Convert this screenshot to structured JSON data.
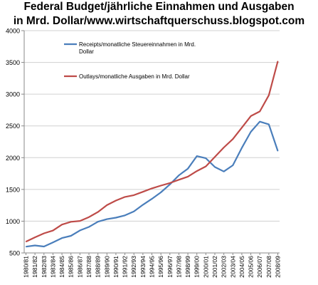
{
  "chart_data": {
    "type": "line",
    "title": "Federal Budget/jährliche Einnahmen und Ausgaben in Mrd. Dollar/www.wirtschaftquerschuss.blogspot.com",
    "title_lines": [
      "Federal Budget/jährliche Einnahmen und Ausgaben",
      "in Mrd. Dollar/www.wirtschaftquerschuss.blogspot.com"
    ],
    "xlabel": "",
    "ylabel": "",
    "ylim": [
      500,
      4000
    ],
    "yticks": [
      500,
      1000,
      1500,
      2000,
      2500,
      3000,
      3500,
      4000
    ],
    "grid": "horizontal",
    "categories": [
      "1980/81",
      "1981/82",
      "1982/83",
      "1983/84",
      "1984/85",
      "1985/86",
      "1986/87",
      "1987/88",
      "1988/89",
      "1989/90",
      "1990/91",
      "1991/92",
      "1992/93",
      "1993/94",
      "1994/95",
      "1995/96",
      "1996/97",
      "1997/98",
      "1998/99",
      "1999/00",
      "2000/01",
      "2001/02",
      "2002/03",
      "2003/04",
      "2004/05",
      "2005/06",
      "2006/07",
      "2007/08",
      "2008/09"
    ],
    "series": [
      {
        "name": "Receipts/monatliche Steuereinnahmen in Mrd. Dollar",
        "label_lines": [
          "Receipts/monatliche Steuereinnahmen in Mrd.",
          "Dollar"
        ],
        "color": "#4a7ebb",
        "values": [
          599,
          618,
          601,
          666,
          734,
          769,
          854,
          909,
          991,
          1032,
          1055,
          1091,
          1154,
          1258,
          1351,
          1453,
          1579,
          1722,
          1827,
          2025,
          1991,
          1853,
          1782,
          1880,
          2153,
          2407,
          2568,
          2524,
          2105
        ]
      },
      {
        "name": "Outlays/monatliche Ausgaben in Mrd. Dollar",
        "label_lines": [
          "Outlays/monatliche Ausgaben in Mrd. Dollar"
        ],
        "color": "#be4b48",
        "values": [
          678,
          746,
          808,
          852,
          946,
          990,
          1004,
          1064,
          1144,
          1253,
          1324,
          1382,
          1410,
          1462,
          1516,
          1560,
          1601,
          1652,
          1702,
          1789,
          1863,
          2011,
          2160,
          2293,
          2472,
          2655,
          2728,
          2983,
          3518
        ]
      }
    ]
  }
}
